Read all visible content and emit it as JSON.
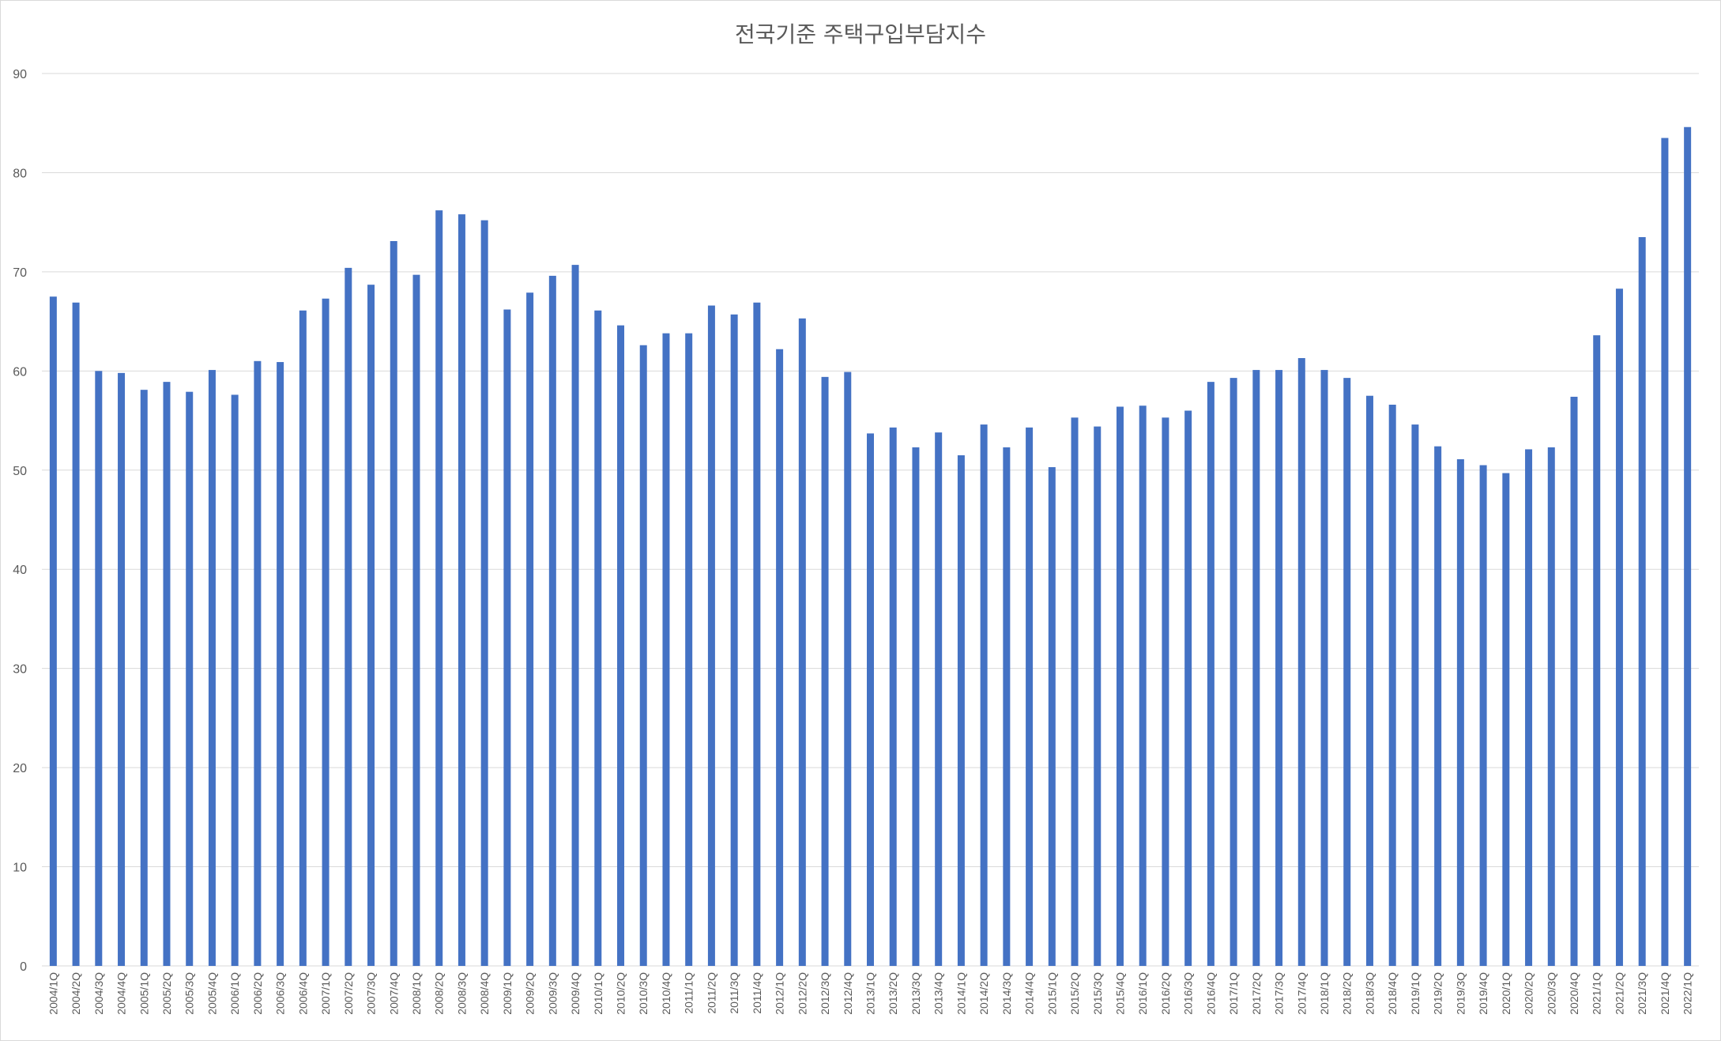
{
  "chart_data": {
    "type": "bar",
    "title": "전국기준 주택구입부담지수",
    "xlabel": "",
    "ylabel": "",
    "ylim": [
      0,
      90
    ],
    "yticks": [
      0,
      10,
      20,
      30,
      40,
      50,
      60,
      70,
      80,
      90
    ],
    "grid": true,
    "legend": "none",
    "bar_color": "#4472c4",
    "grid_color": "#d9d9d9",
    "categories": [
      "2004/1Q",
      "2004/2Q",
      "2004/3Q",
      "2004/4Q",
      "2005/1Q",
      "2005/2Q",
      "2005/3Q",
      "2005/4Q",
      "2006/1Q",
      "2006/2Q",
      "2006/3Q",
      "2006/4Q",
      "2007/1Q",
      "2007/2Q",
      "2007/3Q",
      "2007/4Q",
      "2008/1Q",
      "2008/2Q",
      "2008/3Q",
      "2008/4Q",
      "2009/1Q",
      "2009/2Q",
      "2009/3Q",
      "2009/4Q",
      "2010/1Q",
      "2010/2Q",
      "2010/3Q",
      "2010/4Q",
      "2011/1Q",
      "2011/2Q",
      "2011/3Q",
      "2011/4Q",
      "2012/1Q",
      "2012/2Q",
      "2012/3Q",
      "2012/4Q",
      "2013/1Q",
      "2013/2Q",
      "2013/3Q",
      "2013/4Q",
      "2014/1Q",
      "2014/2Q",
      "2014/3Q",
      "2014/4Q",
      "2015/1Q",
      "2015/2Q",
      "2015/3Q",
      "2015/4Q",
      "2016/1Q",
      "2016/2Q",
      "2016/3Q",
      "2016/4Q",
      "2017/1Q",
      "2017/2Q",
      "2017/3Q",
      "2017/4Q",
      "2018/1Q",
      "2018/2Q",
      "2018/3Q",
      "2018/4Q",
      "2019/1Q",
      "2019/2Q",
      "2019/3Q",
      "2019/4Q",
      "2020/1Q",
      "2020/2Q",
      "2020/3Q",
      "2020/4Q",
      "2021/1Q",
      "2021/2Q",
      "2021/3Q",
      "2021/4Q",
      "2022/1Q"
    ],
    "values": [
      67.5,
      66.9,
      60.0,
      59.8,
      58.1,
      58.9,
      57.9,
      60.1,
      57.6,
      61.0,
      60.9,
      66.1,
      67.3,
      70.4,
      68.7,
      73.1,
      69.7,
      76.2,
      75.8,
      75.2,
      66.2,
      67.9,
      69.6,
      70.7,
      66.1,
      64.6,
      62.6,
      63.8,
      63.8,
      66.6,
      65.7,
      66.9,
      62.2,
      65.3,
      59.4,
      59.9,
      53.7,
      54.3,
      52.3,
      53.8,
      51.5,
      54.6,
      52.3,
      54.3,
      50.3,
      55.3,
      54.4,
      56.4,
      56.5,
      55.3,
      56.0,
      58.9,
      59.3,
      60.1,
      60.1,
      61.3,
      60.1,
      59.3,
      57.5,
      56.6,
      54.6,
      52.4,
      51.1,
      50.5,
      49.7,
      52.1,
      52.3,
      57.4,
      63.6,
      68.3,
      73.5,
      83.5,
      84.6
    ]
  }
}
